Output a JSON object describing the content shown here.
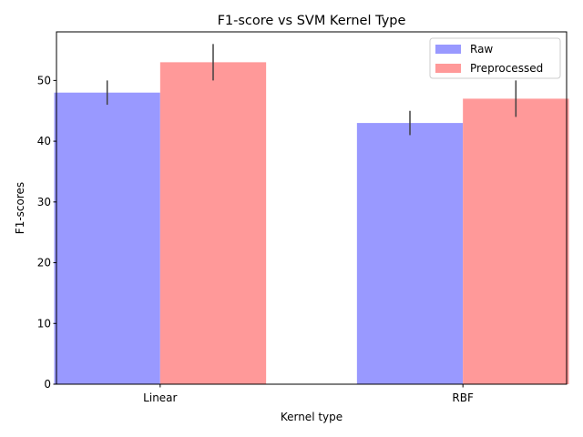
{
  "chart_data": {
    "type": "bar",
    "title": "F1-score vs SVM Kernel Type",
    "xlabel": "Kernel type",
    "ylabel": "F1-scores",
    "categories": [
      "Linear",
      "RBF"
    ],
    "ylim": [
      0,
      58
    ],
    "yticks": [
      0,
      10,
      20,
      30,
      40,
      50
    ],
    "grid": false,
    "legend_position": "top-right",
    "series": [
      {
        "name": "Raw",
        "values": [
          48,
          43
        ],
        "errors": [
          2,
          2
        ],
        "color": "#9999ff"
      },
      {
        "name": "Preprocessed",
        "values": [
          53,
          47
        ],
        "errors": [
          3,
          3
        ],
        "color": "#ff9999"
      }
    ],
    "error_bar_color": "#404040"
  }
}
